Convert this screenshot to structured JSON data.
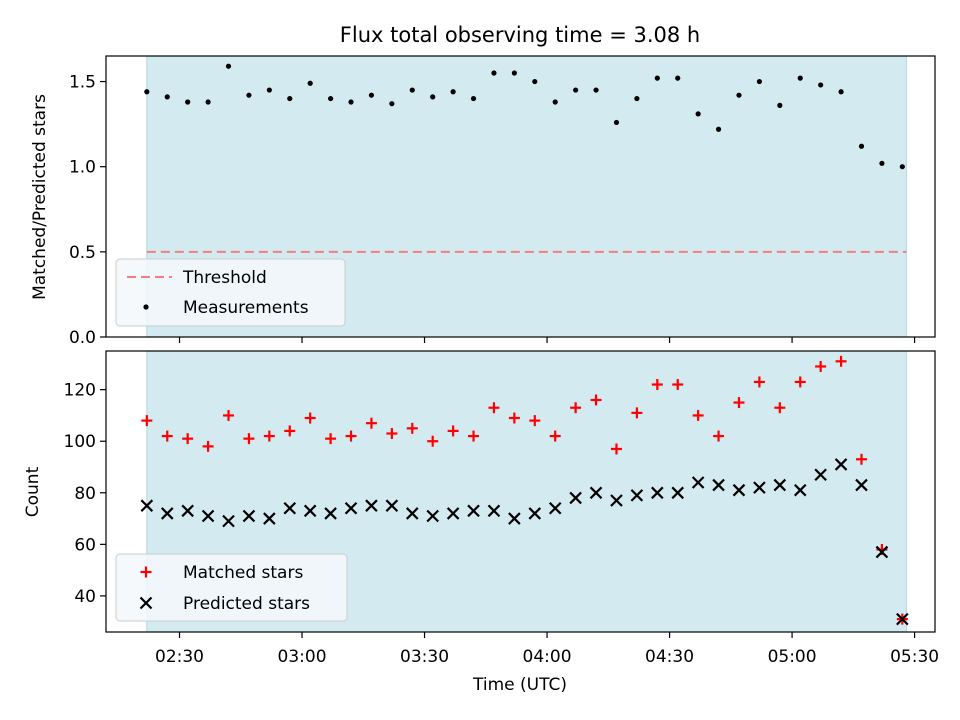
{
  "chart_data": [
    {
      "type": "scatter",
      "title": "Flux total observing time = 3.08 h",
      "ylabel": "Matched/Predicted stars",
      "xlabel": "",
      "ylim": [
        0,
        1.65
      ],
      "yticks": [
        0.0,
        0.5,
        1.0,
        1.5
      ],
      "ytick_labels": [
        "0.0",
        "0.5",
        "1.0",
        "1.5"
      ],
      "observing_window": [
        "02:22",
        "05:28"
      ],
      "legend": {
        "placement": "lower-left",
        "entries": [
          "Threshold",
          "Measurements"
        ]
      },
      "threshold": {
        "name": "Threshold",
        "value": 0.5,
        "color": "#f08080",
        "style": "dashed"
      },
      "series": [
        {
          "name": "Measurements",
          "color": "#000000",
          "marker": "dot",
          "x": [
            "02:22",
            "02:27",
            "02:32",
            "02:37",
            "02:42",
            "02:47",
            "02:52",
            "02:57",
            "03:02",
            "03:07",
            "03:12",
            "03:17",
            "03:22",
            "03:27",
            "03:32",
            "03:37",
            "03:42",
            "03:47",
            "03:52",
            "03:57",
            "04:02",
            "04:07",
            "04:12",
            "04:17",
            "04:22",
            "04:27",
            "04:32",
            "04:37",
            "04:42",
            "04:47",
            "04:52",
            "04:57",
            "05:02",
            "05:07",
            "05:12",
            "05:17",
            "05:22",
            "05:27"
          ],
          "y": [
            1.44,
            1.41,
            1.38,
            1.38,
            1.59,
            1.42,
            1.45,
            1.4,
            1.49,
            1.4,
            1.38,
            1.42,
            1.37,
            1.45,
            1.41,
            1.44,
            1.4,
            1.55,
            1.55,
            1.5,
            1.38,
            1.45,
            1.45,
            1.26,
            1.4,
            1.52,
            1.52,
            1.31,
            1.22,
            1.42,
            1.5,
            1.36,
            1.52,
            1.48,
            1.44,
            1.12,
            1.02,
            1.0
          ]
        }
      ]
    },
    {
      "type": "scatter",
      "title": "",
      "ylabel": "Count",
      "xlabel": "Time (UTC)",
      "ylim": [
        26,
        135
      ],
      "yticks": [
        40,
        60,
        80,
        100,
        120
      ],
      "ytick_labels": [
        "40",
        "60",
        "80",
        "100",
        "120"
      ],
      "xlim": [
        "02:12",
        "05:35"
      ],
      "xticks": [
        "02:30",
        "03:00",
        "03:30",
        "04:00",
        "04:30",
        "05:00",
        "05:30"
      ],
      "observing_window": [
        "02:22",
        "05:28"
      ],
      "legend": {
        "placement": "lower-left",
        "entries": [
          "Matched stars",
          "Predicted stars"
        ]
      },
      "series": [
        {
          "name": "Matched stars",
          "color": "#ff0000",
          "marker": "plus",
          "x": [
            "02:22",
            "02:27",
            "02:32",
            "02:37",
            "02:42",
            "02:47",
            "02:52",
            "02:57",
            "03:02",
            "03:07",
            "03:12",
            "03:17",
            "03:22",
            "03:27",
            "03:32",
            "03:37",
            "03:42",
            "03:47",
            "03:52",
            "03:57",
            "04:02",
            "04:07",
            "04:12",
            "04:17",
            "04:22",
            "04:27",
            "04:32",
            "04:37",
            "04:42",
            "04:47",
            "04:52",
            "04:57",
            "05:02",
            "05:07",
            "05:12",
            "05:17",
            "05:22",
            "05:27"
          ],
          "y": [
            108,
            102,
            101,
            98,
            110,
            101,
            102,
            104,
            109,
            101,
            102,
            107,
            103,
            105,
            100,
            104,
            102,
            113,
            109,
            108,
            102,
            113,
            116,
            97,
            111,
            122,
            122,
            110,
            102,
            115,
            123,
            113,
            123,
            129,
            131,
            93,
            58,
            31
          ]
        },
        {
          "name": "Predicted stars",
          "color": "#000000",
          "marker": "x",
          "x": [
            "02:22",
            "02:27",
            "02:32",
            "02:37",
            "02:42",
            "02:47",
            "02:52",
            "02:57",
            "03:02",
            "03:07",
            "03:12",
            "03:17",
            "03:22",
            "03:27",
            "03:32",
            "03:37",
            "03:42",
            "03:47",
            "03:52",
            "03:57",
            "04:02",
            "04:07",
            "04:12",
            "04:17",
            "04:22",
            "04:27",
            "04:32",
            "04:37",
            "04:42",
            "04:47",
            "04:52",
            "04:57",
            "05:02",
            "05:07",
            "05:12",
            "05:17",
            "05:22",
            "05:27"
          ],
          "y": [
            75,
            72,
            73,
            71,
            69,
            71,
            70,
            74,
            73,
            72,
            74,
            75,
            75,
            72,
            71,
            72,
            73,
            73,
            70,
            72,
            74,
            78,
            80,
            77,
            79,
            80,
            80,
            84,
            83,
            81,
            82,
            83,
            81,
            87,
            91,
            83,
            57,
            31
          ]
        }
      ]
    }
  ],
  "colors": {
    "shading": "#d3eaf0",
    "shading_edge": "#add8e6",
    "legend_background": "#f4f8fb"
  }
}
